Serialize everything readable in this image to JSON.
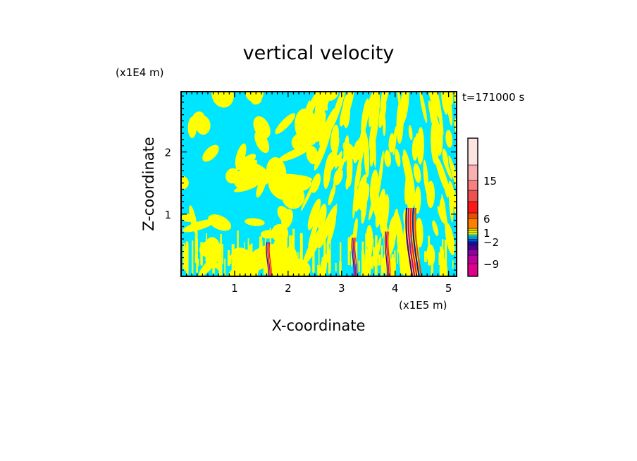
{
  "chart_data": {
    "type": "heatmap",
    "title": "vertical velocity",
    "time_label": "t=171000 s",
    "xlabel": "X-coordinate",
    "ylabel": "Z-coordinate",
    "x_unit": "(x1E5 m)",
    "y_unit": "(x1E4 m)",
    "xlim": [
      0,
      5.15
    ],
    "ylim": [
      0,
      2.97
    ],
    "x_ticks": [
      1,
      2,
      3,
      4,
      5
    ],
    "y_ticks": [
      1,
      2
    ],
    "field_colors": {
      "weak_positive": "#ffff00",
      "weak_negative": "#00e5ff"
    },
    "colorbar": {
      "levels": [
        "-9",
        "-2",
        "1",
        "6",
        "15"
      ],
      "bins": [
        "#e0008c",
        "#c0009c",
        "#9000a8",
        "#4b0090",
        "#0a1aa0",
        "#0050e8",
        "#00c8ff",
        "#00e5ff",
        "#ffff00",
        "#f0f000",
        "#e0d000",
        "#ff8000",
        "#e85000",
        "#ff1818",
        "#f05050",
        "#f88080",
        "#f8b0b0",
        "#fde4e0"
      ]
    },
    "features": [
      {
        "label": "strong-updraft-pair",
        "x": 4.3,
        "z_top": 1.1
      },
      {
        "label": "narrow-plume",
        "x": 3.23,
        "z_top": 0.62
      },
      {
        "label": "narrow-plume",
        "x": 3.85,
        "z_top": 0.72
      },
      {
        "label": "narrow-plume",
        "x": 1.63,
        "z_top": 0.55
      }
    ]
  }
}
